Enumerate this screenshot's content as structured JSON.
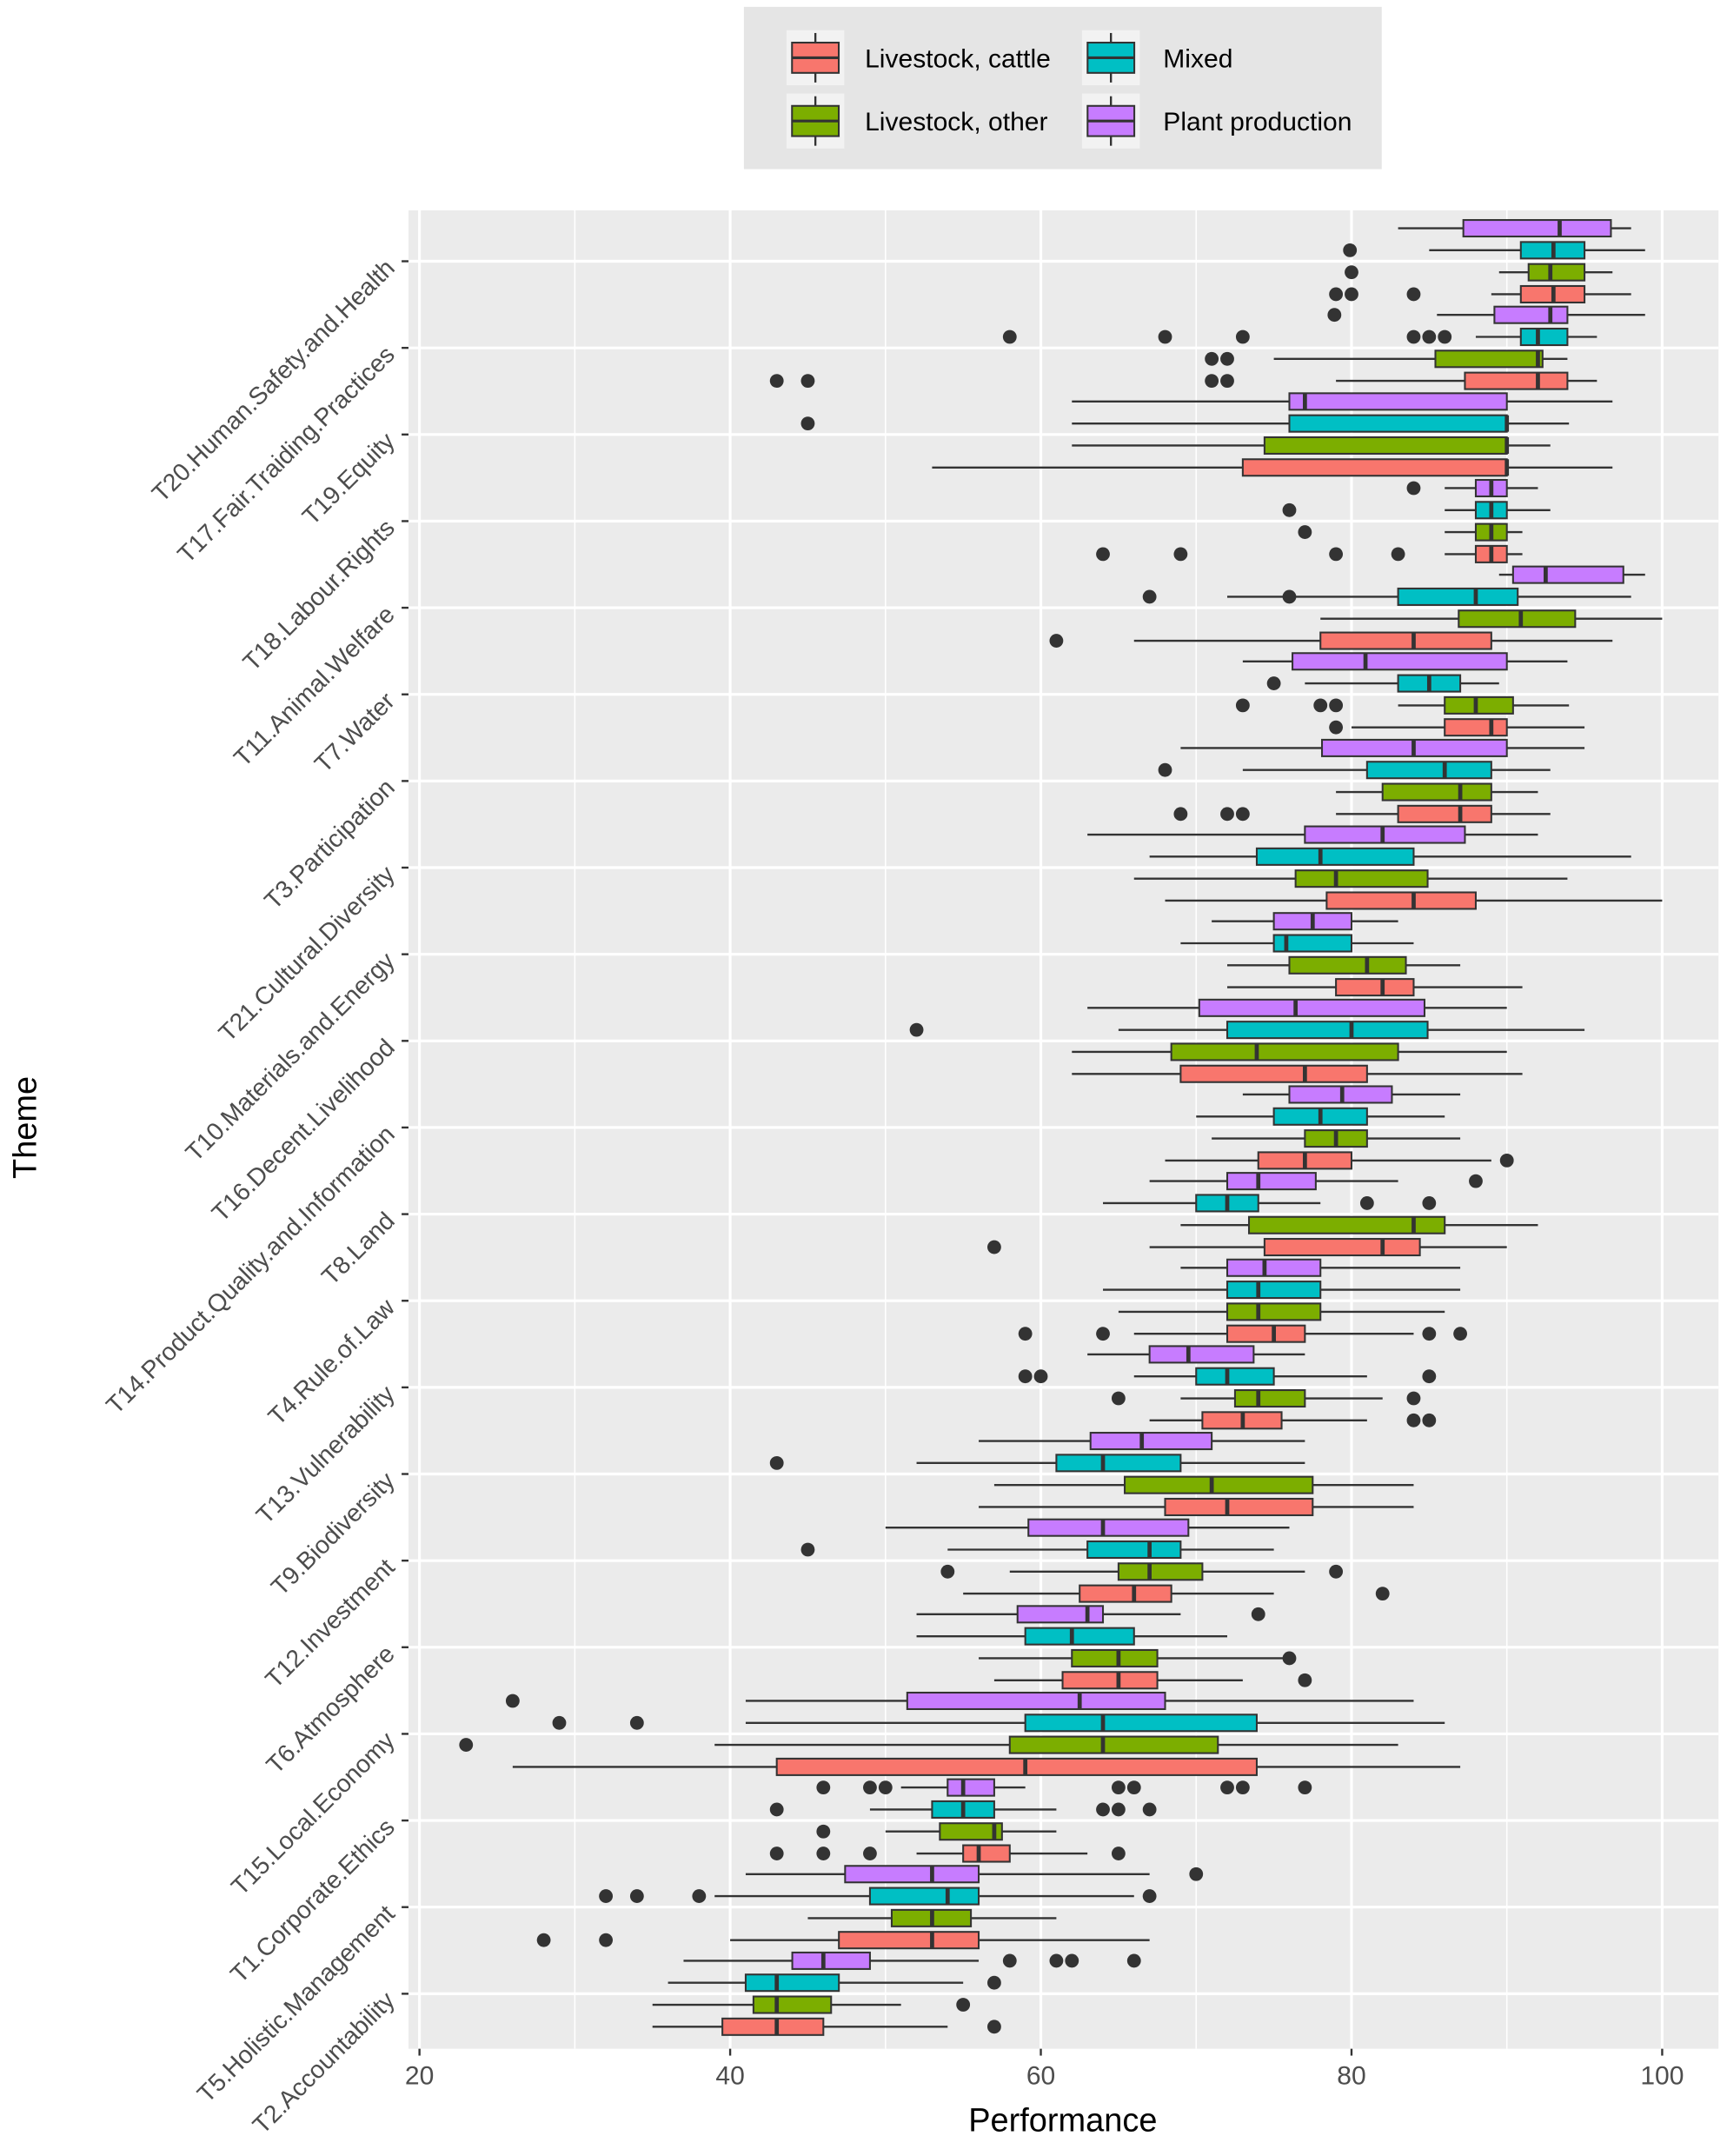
{
  "chart_data": {
    "type": "boxplot",
    "orientation": "horizontal",
    "xlabel": "Performance",
    "ylabel": "Theme",
    "xlim": [
      18,
      102
    ],
    "xticks": [
      20,
      40,
      60,
      80,
      100
    ],
    "grid": true,
    "legend": {
      "placement": "top",
      "entries": [
        "Livestock, cattle",
        "Livestock, other",
        "Mixed",
        "Plant production"
      ]
    },
    "colors": {
      "Livestock, cattle": "#F8766D",
      "Livestock, other": "#7CAE00",
      "Mixed": "#00BFC4",
      "Plant production": "#C77CFF",
      "panel": "#EBEBEB",
      "legend_bg": "#E5E5E5"
    },
    "box_fields": [
      "whisker_low",
      "q1",
      "median",
      "q3",
      "whisker_high",
      "outliers"
    ],
    "themes": [
      {
        "name": "T20.Human.Safety.and.Health",
        "boxes": {
          "Plant production": [
            83,
            87.2,
            93.4,
            96.7,
            98,
            []
          ],
          "Mixed": [
            85,
            90.9,
            93,
            95,
            98.9,
            [
              79.9
            ]
          ],
          "Livestock, other": [
            89.5,
            91.4,
            92.8,
            95,
            96.8,
            [
              80
            ]
          ],
          "Livestock, cattle": [
            89,
            90.9,
            93,
            95,
            98,
            [
              79,
              80,
              84
            ]
          ]
        }
      },
      {
        "name": "T17.Fair.Traiding.Practices",
        "boxes": {
          "Plant production": [
            85.5,
            89.2,
            92.8,
            93.9,
            98.9,
            [
              78.9
            ]
          ],
          "Mixed": [
            88,
            90.9,
            92,
            93.9,
            95.8,
            [
              58,
              68,
              73,
              84,
              85,
              86
            ]
          ],
          "Livestock, other": [
            75,
            85.4,
            92,
            92.3,
            93.9,
            [
              71,
              72
            ]
          ],
          "Livestock, cattle": [
            79,
            87.3,
            92,
            93.9,
            95.8,
            [
              43,
              45,
              71,
              72
            ]
          ]
        }
      },
      {
        "name": "T19.Equity",
        "boxes": {
          "Plant production": [
            62,
            76,
            77,
            90,
            96.8,
            []
          ],
          "Mixed": [
            62,
            76,
            90,
            90,
            94,
            [
              45
            ]
          ],
          "Livestock, other": [
            62,
            74.4,
            90,
            90,
            92.8,
            []
          ],
          "Livestock, cattle": [
            53,
            73,
            90,
            90,
            96.8,
            []
          ]
        }
      },
      {
        "name": "T18.Labour.Rights",
        "boxes": {
          "Plant production": [
            86,
            88,
            89,
            90,
            92,
            [
              84
            ]
          ],
          "Mixed": [
            86,
            88,
            89,
            90,
            92.8,
            [
              76
            ]
          ],
          "Livestock, other": [
            86,
            88,
            89,
            90,
            91,
            [
              77
            ]
          ],
          "Livestock, cattle": [
            86,
            88,
            89,
            90,
            91,
            [
              64,
              69,
              79,
              83
            ]
          ]
        }
      },
      {
        "name": "T11.Animal.Welfare",
        "boxes": {
          "Plant production": [
            89.5,
            90.4,
            92.5,
            97.5,
            98.9,
            []
          ],
          "Mixed": [
            72,
            83,
            88,
            90.7,
            98,
            [
              67,
              76
            ]
          ],
          "Livestock, other": [
            78,
            86.9,
            90.9,
            94.4,
            100,
            []
          ],
          "Livestock, cattle": [
            66,
            78,
            84,
            89,
            96.8,
            [
              61
            ]
          ]
        }
      },
      {
        "name": "T7.Water",
        "boxes": {
          "Plant production": [
            73,
            76.2,
            80.9,
            90,
            93.9,
            []
          ],
          "Mixed": [
            77,
            83,
            85,
            87,
            89.5,
            [
              75
            ]
          ],
          "Livestock, other": [
            83,
            86,
            88,
            90.4,
            94,
            [
              73,
              78,
              79
            ]
          ],
          "Livestock, cattle": [
            80,
            86,
            89,
            90,
            95,
            [
              79
            ]
          ]
        }
      },
      {
        "name": "T3.Participation",
        "boxes": {
          "Plant production": [
            69,
            78.1,
            84,
            90,
            95,
            []
          ],
          "Mixed": [
            73,
            81,
            86,
            89,
            92.8,
            [
              68
            ]
          ],
          "Livestock, other": [
            79,
            82,
            87,
            89,
            92,
            []
          ],
          "Livestock, cattle": [
            79,
            83,
            87,
            89,
            92.8,
            [
              69,
              72,
              73
            ]
          ]
        }
      },
      {
        "name": "T21.Cultural.Diversity",
        "boxes": {
          "Plant production": [
            63,
            77,
            82,
            87.3,
            92,
            []
          ],
          "Mixed": [
            67,
            73.9,
            78,
            84,
            98,
            []
          ],
          "Livestock, other": [
            66,
            76.4,
            79,
            84.9,
            93.9,
            []
          ],
          "Livestock, cattle": [
            68,
            78.4,
            84,
            88,
            100,
            []
          ]
        }
      },
      {
        "name": "T10.Materials.and.Energy",
        "boxes": {
          "Plant production": [
            71,
            75,
            77.5,
            80,
            83,
            []
          ],
          "Mixed": [
            69,
            75,
            75.8,
            80,
            84,
            []
          ],
          "Livestock, other": [
            72,
            76,
            81,
            83.5,
            87,
            []
          ],
          "Livestock, cattle": [
            72,
            79,
            82,
            84,
            91,
            []
          ]
        }
      },
      {
        "name": "T16.Decent.Livelihood",
        "boxes": {
          "Plant production": [
            63,
            70.2,
            76.4,
            84.7,
            90,
            []
          ],
          "Mixed": [
            65,
            72,
            80,
            84.9,
            95,
            [
              52
            ]
          ],
          "Livestock, other": [
            62,
            68.4,
            73.9,
            83,
            90,
            []
          ],
          "Livestock, cattle": [
            62,
            69,
            77,
            81,
            91,
            []
          ]
        }
      },
      {
        "name": "T14.Product.Quality.and.Information",
        "boxes": {
          "Plant production": [
            73,
            76,
            79.4,
            82.6,
            87,
            []
          ],
          "Mixed": [
            70,
            75,
            78,
            81,
            86,
            []
          ],
          "Livestock, other": [
            71,
            77,
            79,
            81,
            87,
            []
          ],
          "Livestock, cattle": [
            68,
            74,
            77,
            80,
            89,
            [
              90
            ]
          ]
        }
      },
      {
        "name": "T8.Land",
        "boxes": {
          "Plant production": [
            67,
            72,
            74,
            77.7,
            83,
            [
              88
            ]
          ],
          "Mixed": [
            64,
            70,
            72,
            74,
            78,
            [
              81,
              85
            ]
          ],
          "Livestock, other": [
            69,
            73.4,
            84,
            86,
            92,
            []
          ],
          "Livestock, cattle": [
            67,
            74.4,
            82,
            84.4,
            90,
            [
              57
            ]
          ]
        }
      },
      {
        "name": "T4.Rule.of.Law",
        "boxes": {
          "Plant production": [
            69,
            72,
            74.4,
            78,
            87,
            []
          ],
          "Mixed": [
            64,
            72,
            74,
            78,
            87,
            []
          ],
          "Livestock, other": [
            65,
            72,
            74,
            78,
            86,
            []
          ],
          "Livestock, cattle": [
            66,
            72,
            75,
            77,
            84,
            [
              59,
              64,
              85,
              87
            ]
          ]
        }
      },
      {
        "name": "T13.Vulnerability",
        "boxes": {
          "Plant production": [
            63,
            67,
            69.5,
            73.7,
            77,
            []
          ],
          "Mixed": [
            66,
            70,
            72,
            75,
            81,
            [
              59,
              60,
              85
            ]
          ],
          "Livestock, other": [
            69,
            72.5,
            74,
            77,
            82,
            [
              65,
              84
            ]
          ],
          "Livestock, cattle": [
            67,
            70.4,
            73,
            75.5,
            81,
            [
              84,
              85
            ]
          ]
        }
      },
      {
        "name": "T9.Biodiversity",
        "boxes": {
          "Plant production": [
            56,
            63.2,
            66.5,
            71,
            77,
            []
          ],
          "Mixed": [
            52,
            61,
            64,
            69,
            77,
            [
              43
            ]
          ],
          "Livestock, other": [
            57,
            65.4,
            71,
            77.5,
            84,
            []
          ],
          "Livestock, cattle": [
            56,
            68,
            72,
            77.5,
            84,
            []
          ]
        }
      },
      {
        "name": "T12.Investment",
        "boxes": {
          "Plant production": [
            50,
            59.2,
            64,
            69.5,
            76,
            []
          ],
          "Mixed": [
            54,
            63,
            67,
            69,
            75,
            [
              45
            ]
          ],
          "Livestock, other": [
            58,
            65,
            67,
            70.4,
            77,
            [
              54,
              79
            ]
          ],
          "Livestock, cattle": [
            55,
            62.5,
            66,
            68.4,
            75,
            [
              82
            ]
          ]
        }
      },
      {
        "name": "T6.Atmosphere",
        "boxes": {
          "Plant production": [
            52,
            58.5,
            63,
            64,
            69,
            [
              74
            ]
          ],
          "Mixed": [
            52,
            59,
            62,
            66,
            72,
            []
          ],
          "Livestock, other": [
            56,
            62,
            65,
            67.5,
            76,
            [
              76
            ]
          ],
          "Livestock, cattle": [
            57,
            61.4,
            65,
            67.5,
            73,
            [
              77
            ]
          ]
        }
      },
      {
        "name": "T15.Local.Economy",
        "boxes": {
          "Plant production": [
            41,
            51.4,
            62.5,
            68,
            84,
            [
              26
            ]
          ],
          "Mixed": [
            41,
            59,
            64,
            73.9,
            86,
            [
              29,
              34
            ]
          ],
          "Livestock, other": [
            39,
            58,
            64,
            71.4,
            83,
            [
              23
            ]
          ],
          "Livestock, cattle": [
            26,
            43,
            59,
            73.9,
            87,
            []
          ]
        }
      },
      {
        "name": "T1.Corporate.Ethics",
        "boxes": {
          "Plant production": [
            51,
            54,
            55,
            57,
            59,
            [
              46,
              49,
              50,
              65,
              66,
              72,
              73,
              77
            ]
          ],
          "Mixed": [
            49,
            53,
            55,
            57,
            61,
            [
              43,
              64,
              65,
              67
            ]
          ],
          "Livestock, other": [
            50,
            53.5,
            57,
            57.5,
            61,
            [
              46
            ]
          ],
          "Livestock, cattle": [
            52,
            55,
            56,
            58,
            63,
            [
              43,
              46,
              49,
              65
            ]
          ]
        }
      },
      {
        "name": "T5.Holistic.Management",
        "boxes": {
          "Plant production": [
            41,
            47.4,
            53,
            56,
            67,
            [
              70
            ]
          ],
          "Mixed": [
            39,
            49,
            54,
            56,
            66,
            [
              32,
              34,
              38,
              67
            ]
          ],
          "Livestock, other": [
            45,
            50.4,
            53,
            55.5,
            61,
            []
          ],
          "Livestock, cattle": [
            40,
            47,
            53,
            56,
            67,
            [
              28,
              32
            ]
          ]
        }
      },
      {
        "name": "T2.Accountability",
        "boxes": {
          "Plant production": [
            37,
            44,
            46,
            49,
            56,
            [
              58,
              61,
              62,
              66
            ]
          ],
          "Mixed": [
            36,
            41,
            43,
            47,
            55,
            [
              57
            ]
          ],
          "Livestock, other": [
            35,
            41.5,
            43,
            46.5,
            51,
            [
              55
            ]
          ],
          "Livestock, cattle": [
            35,
            39.5,
            43,
            46,
            54,
            [
              57
            ]
          ]
        }
      }
    ]
  }
}
